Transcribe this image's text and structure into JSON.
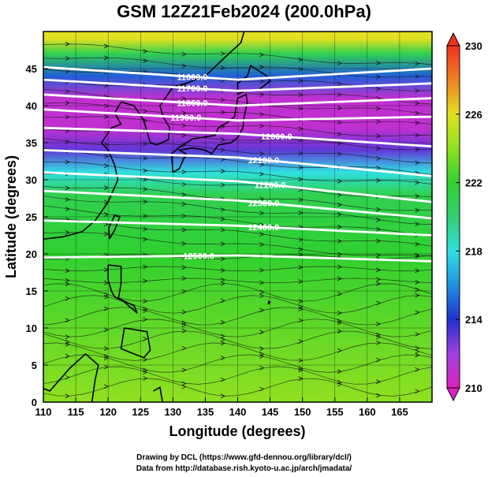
{
  "title": "GSM 12Z21Feb2024 (200.0hPa)",
  "xlabel": "Longitude (degrees)",
  "ylabel": "Latitude  (degrees)",
  "x_ticks": [
    "110",
    "115",
    "120",
    "125",
    "130",
    "135",
    "140",
    "145",
    "150",
    "155",
    "160",
    "165"
  ],
  "y_ticks": [
    "0",
    "5",
    "10",
    "15",
    "20",
    "25",
    "30",
    "35",
    "40",
    "45"
  ],
  "colorbar_ticks": [
    "210",
    "214",
    "218",
    "222",
    "226",
    "230"
  ],
  "credit_line1": "Drawing by DCL (https://www.gfd-dennou.org/library/dcl/)",
  "credit_line2": "Data from http://database.rish.kyoto-u.ac.jp/arch/jmadata/",
  "contour_labels": [
    "11600.0",
    "11700.0",
    "11800.0",
    "11900.0",
    "12000.0",
    "12100.0",
    "12200.0",
    "12300.0",
    "12400.0",
    "12500.0"
  ],
  "chart_data": {
    "type": "heatmap",
    "xlim": [
      110,
      170
    ],
    "ylim": [
      0,
      50
    ],
    "colorbar": {
      "range": [
        210,
        230
      ],
      "stops": [
        {
          "value": 210,
          "color": "#e020c0"
        },
        {
          "value": 212,
          "color": "#a040e0"
        },
        {
          "value": 214,
          "color": "#2030d0"
        },
        {
          "value": 216,
          "color": "#2090e0"
        },
        {
          "value": 218,
          "color": "#30e0e0"
        },
        {
          "value": 220,
          "color": "#30d070"
        },
        {
          "value": 222,
          "color": "#30d030"
        },
        {
          "value": 224,
          "color": "#90e020"
        },
        {
          "value": 226,
          "color": "#e0e020"
        },
        {
          "value": 228,
          "color": "#f08020"
        },
        {
          "value": 230,
          "color": "#f03020"
        }
      ]
    },
    "height_contours": [
      {
        "label": "11600.0",
        "lat_start": 45.2,
        "lat_mid": 43.5,
        "lat_end": 45.0
      },
      {
        "label": "11700.0",
        "lat_start": 43.5,
        "lat_mid": 42.0,
        "lat_end": 43.0
      },
      {
        "label": "11800.0",
        "lat_start": 41.5,
        "lat_mid": 40.0,
        "lat_end": 41.0
      },
      {
        "label": "11900.0",
        "lat_start": 39.5,
        "lat_mid": 38.0,
        "lat_end": 38.5
      },
      {
        "label": "12000.0",
        "lat_start": 37.0,
        "lat_mid": 36.2,
        "lat_end": 34.5
      },
      {
        "label": "12100.0",
        "lat_start": 34.0,
        "lat_mid": 33.0,
        "lat_end": 30.5
      },
      {
        "label": "12200.0",
        "lat_start": 31.0,
        "lat_mid": 29.8,
        "lat_end": 27.0
      },
      {
        "label": "12300.0",
        "lat_start": 28.5,
        "lat_mid": 27.2,
        "lat_end": 24.8
      },
      {
        "label": "12400.0",
        "lat_start": 24.5,
        "lat_mid": 23.8,
        "lat_end": 22.5
      },
      {
        "label": "12500.0",
        "lat_start": 19.5,
        "lat_mid": 19.8,
        "lat_end": 19.0
      }
    ],
    "temperature_bands": [
      {
        "lat": 49,
        "value": 226
      },
      {
        "lat": 47,
        "value": 221
      },
      {
        "lat": 44,
        "value": 215
      },
      {
        "lat": 41,
        "value": 211
      },
      {
        "lat": 37,
        "value": 211
      },
      {
        "lat": 34,
        "value": 213
      },
      {
        "lat": 31,
        "value": 218
      },
      {
        "lat": 28,
        "value": 221
      },
      {
        "lat": 20,
        "value": 222
      },
      {
        "lat": 10,
        "value": 223
      },
      {
        "lat": 0,
        "value": 224
      }
    ]
  }
}
